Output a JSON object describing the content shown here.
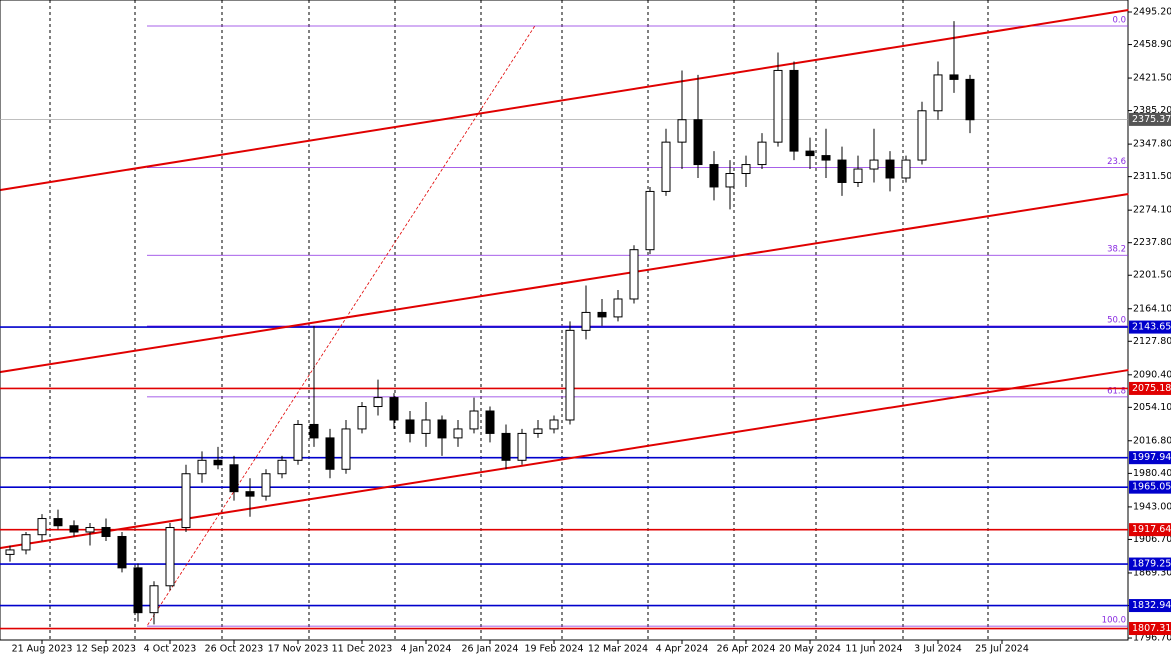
{
  "chart_data": {
    "type": "candlestick",
    "candles": [
      [
        1890,
        1900,
        1882,
        1895
      ],
      [
        1895,
        1915,
        1890,
        1912
      ],
      [
        1912,
        1935,
        1905,
        1930
      ],
      [
        1930,
        1940,
        1918,
        1922
      ],
      [
        1922,
        1928,
        1910,
        1915
      ],
      [
        1915,
        1925,
        1900,
        1920
      ],
      [
        1920,
        1930,
        1905,
        1910
      ],
      [
        1910,
        1915,
        1870,
        1875
      ],
      [
        1875,
        1880,
        1815,
        1825
      ],
      [
        1825,
        1860,
        1812,
        1855
      ],
      [
        1855,
        1925,
        1850,
        1920
      ],
      [
        1920,
        1990,
        1915,
        1980
      ],
      [
        1980,
        2005,
        1970,
        1995
      ],
      [
        1995,
        2010,
        1985,
        1990
      ],
      [
        1990,
        2000,
        1950,
        1960
      ],
      [
        1960,
        1975,
        1932,
        1955
      ],
      [
        1955,
        1985,
        1950,
        1980
      ],
      [
        1980,
        2000,
        1975,
        1995
      ],
      [
        1995,
        2040,
        1990,
        2035
      ],
      [
        2035,
        2145,
        2010,
        2020
      ],
      [
        2020,
        2030,
        1975,
        1985
      ],
      [
        1985,
        2040,
        1980,
        2030
      ],
      [
        2030,
        2060,
        2025,
        2055
      ],
      [
        2055,
        2085,
        2045,
        2065
      ],
      [
        2065,
        2070,
        2030,
        2040
      ],
      [
        2040,
        2050,
        2015,
        2025
      ],
      [
        2025,
        2060,
        2010,
        2040
      ],
      [
        2040,
        2045,
        2000,
        2020
      ],
      [
        2020,
        2040,
        2010,
        2030
      ],
      [
        2030,
        2065,
        2025,
        2050
      ],
      [
        2050,
        2055,
        2015,
        2025
      ],
      [
        2025,
        2035,
        1985,
        1995
      ],
      [
        1995,
        2030,
        1990,
        2025
      ],
      [
        2025,
        2040,
        2020,
        2030
      ],
      [
        2030,
        2045,
        2025,
        2040
      ],
      [
        2040,
        2150,
        2035,
        2140
      ],
      [
        2140,
        2190,
        2130,
        2160
      ],
      [
        2160,
        2175,
        2145,
        2155
      ],
      [
        2155,
        2185,
        2150,
        2175
      ],
      [
        2175,
        2235,
        2170,
        2230
      ],
      [
        2230,
        2300,
        2225,
        2295
      ],
      [
        2295,
        2365,
        2290,
        2350
      ],
      [
        2350,
        2430,
        2320,
        2375
      ],
      [
        2375,
        2425,
        2310,
        2325
      ],
      [
        2325,
        2340,
        2285,
        2300
      ],
      [
        2300,
        2330,
        2275,
        2315
      ],
      [
        2315,
        2335,
        2300,
        2325
      ],
      [
        2325,
        2360,
        2320,
        2350
      ],
      [
        2350,
        2450,
        2345,
        2430
      ],
      [
        2430,
        2440,
        2330,
        2340
      ],
      [
        2340,
        2355,
        2320,
        2335
      ],
      [
        2335,
        2365,
        2310,
        2330
      ],
      [
        2330,
        2345,
        2290,
        2305
      ],
      [
        2305,
        2335,
        2300,
        2320
      ],
      [
        2320,
        2365,
        2305,
        2330
      ],
      [
        2330,
        2340,
        2295,
        2310
      ],
      [
        2310,
        2335,
        2305,
        2330
      ],
      [
        2330,
        2395,
        2325,
        2385
      ],
      [
        2385,
        2440,
        2375,
        2425
      ],
      [
        2425,
        2485,
        2405,
        2420
      ],
      [
        2420,
        2425,
        2360,
        2375
      ]
    ],
    "xticks": [
      {
        "value": 2,
        "label": "21 Aug 2023"
      },
      {
        "value": 6,
        "label": "12 Sep 2023"
      },
      {
        "value": 10,
        "label": "4 Oct 2023"
      },
      {
        "value": 14,
        "label": "26 Oct 2023"
      },
      {
        "value": 18,
        "label": "17 Nov 2023"
      },
      {
        "value": 22,
        "label": "11 Dec 2023"
      },
      {
        "value": 26,
        "label": "4 Jan 2024"
      },
      {
        "value": 30,
        "label": "26 Jan 2024"
      },
      {
        "value": 34,
        "label": "19 Feb 2024"
      },
      {
        "value": 38,
        "label": "12 Mar 2024"
      },
      {
        "value": 42,
        "label": "4 Apr 2024"
      },
      {
        "value": 46,
        "label": "26 Apr 2024"
      },
      {
        "value": 50,
        "label": "20 May 2024"
      },
      {
        "value": 54,
        "label": "11 Jun 2024"
      },
      {
        "value": 58,
        "label": "3 Jul 2024"
      },
      {
        "value": 62,
        "label": "25 Jul 2024"
      }
    ],
    "ylim": [
      1794.5,
      2508.6
    ],
    "yticks": [
      {
        "value": 2495.2,
        "label": "2495.20"
      },
      {
        "value": 2458.9,
        "label": "2458.90"
      },
      {
        "value": 2421.5,
        "label": "2421.50"
      },
      {
        "value": 2385.2,
        "label": "2385.20"
      },
      {
        "value": 2347.8,
        "label": "2347.80"
      },
      {
        "value": 2311.5,
        "label": "2311.50"
      },
      {
        "value": 2274.1,
        "label": "2274.10"
      },
      {
        "value": 2237.8,
        "label": "2237.80"
      },
      {
        "value": 2201.5,
        "label": "2201.50"
      },
      {
        "value": 2164.1,
        "label": "2164.10"
      },
      {
        "value": 2127.8,
        "label": "2127.80"
      },
      {
        "value": 2090.4,
        "label": "2090.40"
      },
      {
        "value": 2054.1,
        "label": "2054.10"
      },
      {
        "value": 2016.8,
        "label": "2016.80"
      },
      {
        "value": 1980.4,
        "label": "1980.40"
      },
      {
        "value": 1943,
        "label": "1943.00"
      },
      {
        "value": 1906.7,
        "label": "1906.70"
      },
      {
        "value": 1869.3,
        "label": "1869.30"
      },
      {
        "value": 1832.9,
        "label": "1832.90"
      },
      {
        "value": 1796.7,
        "label": "1796.70"
      }
    ],
    "current_price": 2375.37,
    "levels": [
      {
        "value": 2143.65,
        "color": "#0000cc"
      },
      {
        "value": 2075.18,
        "color": "#e00000"
      },
      {
        "value": 1997.94,
        "color": "#0000cc"
      },
      {
        "value": 1965.05,
        "color": "#0000cc"
      },
      {
        "value": 1917.64,
        "color": "#e00000"
      },
      {
        "value": 1879.25,
        "color": "#0000cc"
      },
      {
        "value": 1832.94,
        "color": "#0000cc"
      },
      {
        "value": 1807.31,
        "color": "#e00000"
      }
    ],
    "fibonacci": [
      {
        "value": 2479.6,
        "label": "0.0"
      },
      {
        "value": 2321.6,
        "label": "23.6"
      },
      {
        "value": 2223.8,
        "label": "38.2"
      },
      {
        "value": 2144.8,
        "label": "50.0"
      },
      {
        "value": 2065.8,
        "label": "61.8"
      },
      {
        "value": 1810,
        "label": "100.0"
      }
    ],
    "trend_lines": [
      {
        "x": [
          -0.6,
          69.9
        ],
        "y": [
          2296.6,
          2497.4
        ],
        "color": "#e00000"
      },
      {
        "x": [
          -0.6,
          69.9
        ],
        "y": [
          2093.5,
          2292.1
        ],
        "color": "#e00000"
      },
      {
        "x": [
          -0.6,
          69.9
        ],
        "y": [
          1897.1,
          2095.7
        ],
        "color": "#e00000"
      },
      {
        "x": [
          8.6,
          32.8
        ],
        "y": [
          1811.2,
          2479.6
        ],
        "color": "#e00000",
        "dashed": true
      }
    ]
  }
}
